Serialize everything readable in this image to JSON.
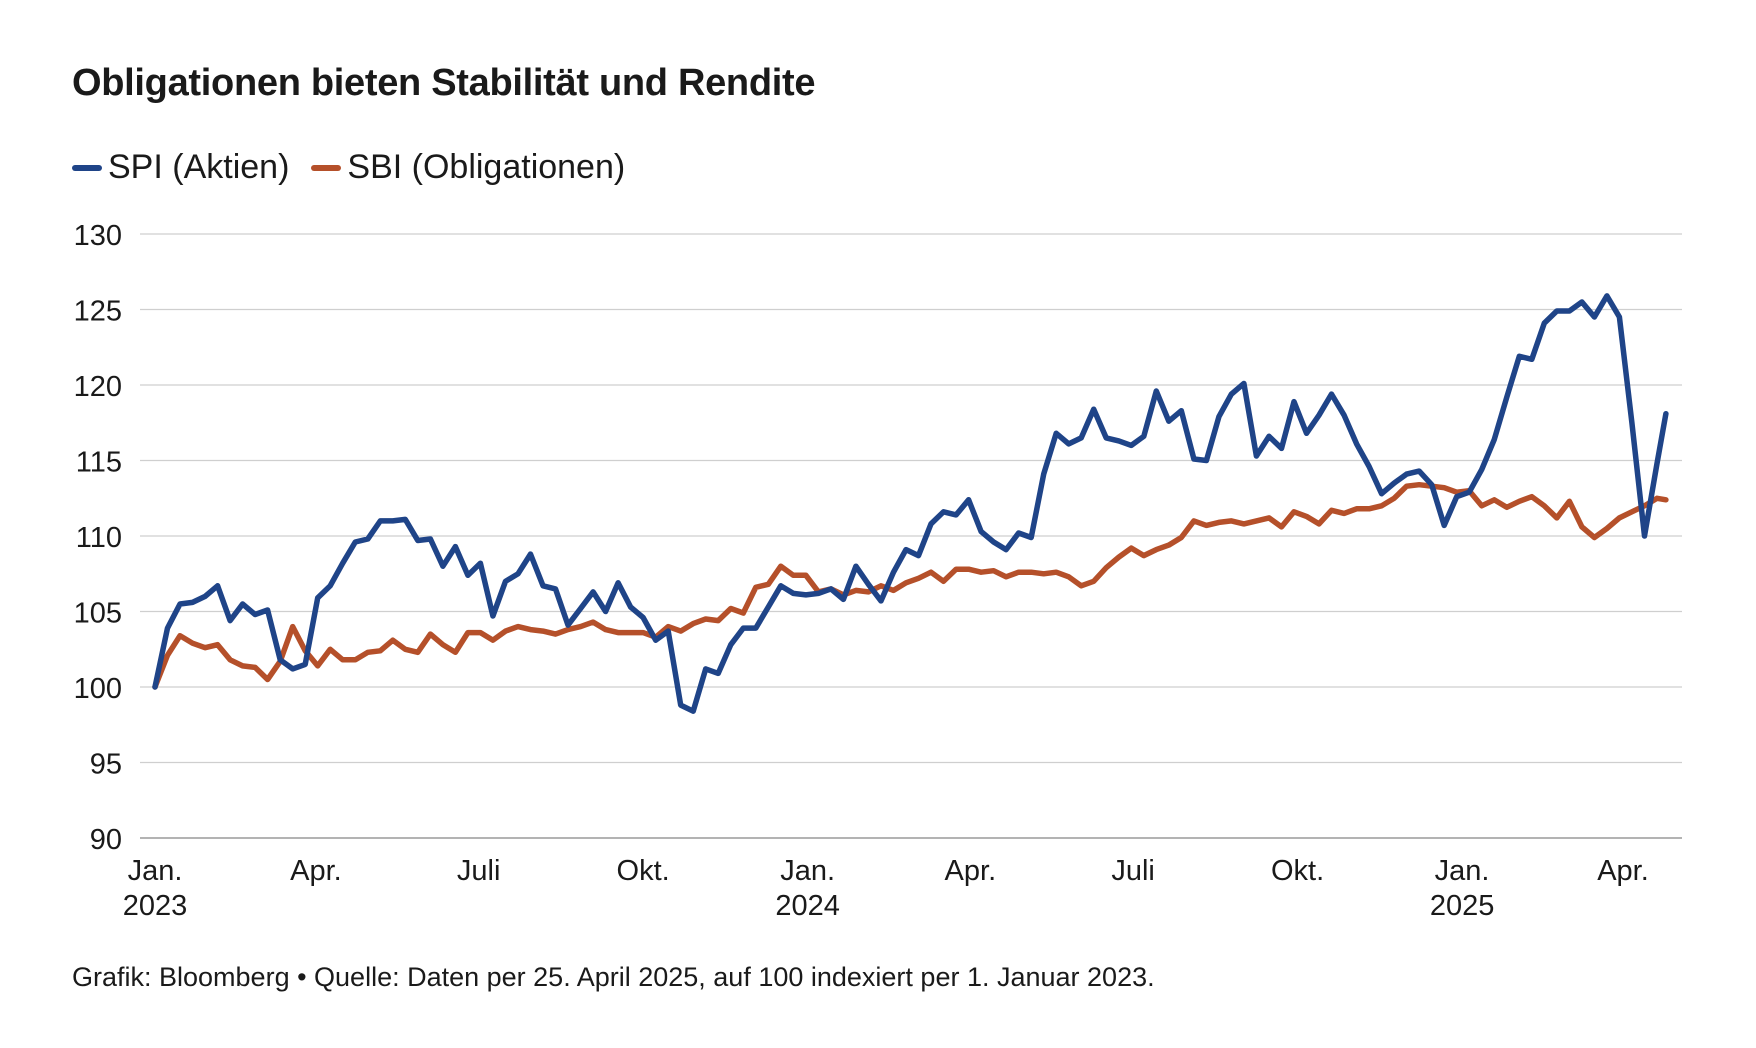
{
  "title": "Obligationen bieten Stabilität und Rendite",
  "legend": [
    {
      "label": "SPI (Aktien)",
      "color": "#1f4488"
    },
    {
      "label": "SBI (Obligationen)",
      "color": "#b5502a"
    }
  ],
  "source": "Grafik: Bloomberg • Quelle: Daten per 25. April 2025, auf 100 indexiert per 1. Januar 2023.",
  "chart_data": {
    "type": "line",
    "title": "Obligationen bieten Stabilität und Rendite",
    "ylim": [
      90,
      130
    ],
    "yticks": [
      90,
      95,
      100,
      105,
      110,
      115,
      120,
      125,
      130
    ],
    "grid": true,
    "legend_position": "top-left",
    "xlim": [
      "2023-01-01",
      "2025-05-01"
    ],
    "xticks": [
      {
        "date": "2023-01-01",
        "label": "Jan.",
        "year": "2023"
      },
      {
        "date": "2023-04-01",
        "label": "Apr.",
        "year": ""
      },
      {
        "date": "2023-07-01",
        "label": "Juli",
        "year": ""
      },
      {
        "date": "2023-10-01",
        "label": "Okt.",
        "year": ""
      },
      {
        "date": "2024-01-01",
        "label": "Jan.",
        "year": "2024"
      },
      {
        "date": "2024-04-01",
        "label": "Apr.",
        "year": ""
      },
      {
        "date": "2024-07-01",
        "label": "Juli",
        "year": ""
      },
      {
        "date": "2024-10-01",
        "label": "Okt.",
        "year": ""
      },
      {
        "date": "2025-01-01",
        "label": "Jan.",
        "year": "2025"
      },
      {
        "date": "2025-04-01",
        "label": "Apr.",
        "year": ""
      }
    ],
    "series": [
      {
        "name": "SPI (Aktien)",
        "color": "#1f4488",
        "points": [
          [
            "2023-01-01",
            100
          ],
          [
            "2023-01-08",
            103.9
          ],
          [
            "2023-01-15",
            105.5
          ],
          [
            "2023-01-22",
            105.6
          ],
          [
            "2023-01-29",
            106
          ],
          [
            "2023-02-05",
            106.7
          ],
          [
            "2023-02-12",
            104.4
          ],
          [
            "2023-02-19",
            105.5
          ],
          [
            "2023-02-26",
            104.8
          ],
          [
            "2023-03-05",
            105.1
          ],
          [
            "2023-03-12",
            101.8
          ],
          [
            "2023-03-19",
            101.2
          ],
          [
            "2023-03-26",
            101.5
          ],
          [
            "2023-04-02",
            105.9
          ],
          [
            "2023-04-09",
            106.7
          ],
          [
            "2023-04-16",
            108.2
          ],
          [
            "2023-04-23",
            109.6
          ],
          [
            "2023-04-30",
            109.8
          ],
          [
            "2023-05-07",
            111
          ],
          [
            "2023-05-14",
            111
          ],
          [
            "2023-05-21",
            111.1
          ],
          [
            "2023-05-28",
            109.7
          ],
          [
            "2023-06-04",
            109.8
          ],
          [
            "2023-06-11",
            108
          ],
          [
            "2023-06-18",
            109.3
          ],
          [
            "2023-06-25",
            107.4
          ],
          [
            "2023-07-02",
            108.2
          ],
          [
            "2023-07-09",
            104.7
          ],
          [
            "2023-07-16",
            107
          ],
          [
            "2023-07-23",
            107.5
          ],
          [
            "2023-07-30",
            108.8
          ],
          [
            "2023-08-06",
            106.7
          ],
          [
            "2023-08-13",
            106.5
          ],
          [
            "2023-08-20",
            104.1
          ],
          [
            "2023-08-27",
            105.2
          ],
          [
            "2023-09-03",
            106.3
          ],
          [
            "2023-09-10",
            105
          ],
          [
            "2023-09-17",
            106.9
          ],
          [
            "2023-09-24",
            105.3
          ],
          [
            "2023-10-01",
            104.6
          ],
          [
            "2023-10-08",
            103.1
          ],
          [
            "2023-10-15",
            103.7
          ],
          [
            "2023-10-22",
            98.8
          ],
          [
            "2023-10-29",
            98.4
          ],
          [
            "2023-11-05",
            101.2
          ],
          [
            "2023-11-12",
            100.9
          ],
          [
            "2023-11-19",
            102.8
          ],
          [
            "2023-11-26",
            103.9
          ],
          [
            "2023-12-03",
            103.9
          ],
          [
            "2023-12-10",
            105.3
          ],
          [
            "2023-12-17",
            106.7
          ],
          [
            "2023-12-24",
            106.2
          ],
          [
            "2023-12-31",
            106.1
          ],
          [
            "2024-01-07",
            106.2
          ],
          [
            "2024-01-14",
            106.5
          ],
          [
            "2024-01-21",
            105.8
          ],
          [
            "2024-01-28",
            108
          ],
          [
            "2024-02-04",
            106.8
          ],
          [
            "2024-02-11",
            105.7
          ],
          [
            "2024-02-18",
            107.6
          ],
          [
            "2024-02-25",
            109.1
          ],
          [
            "2024-03-03",
            108.7
          ],
          [
            "2024-03-10",
            110.8
          ],
          [
            "2024-03-17",
            111.6
          ],
          [
            "2024-03-24",
            111.4
          ],
          [
            "2024-03-31",
            112.4
          ],
          [
            "2024-04-07",
            110.3
          ],
          [
            "2024-04-14",
            109.6
          ],
          [
            "2024-04-21",
            109.1
          ],
          [
            "2024-04-28",
            110.2
          ],
          [
            "2024-05-05",
            109.9
          ],
          [
            "2024-05-12",
            114.1
          ],
          [
            "2024-05-19",
            116.8
          ],
          [
            "2024-05-26",
            116.1
          ],
          [
            "2024-06-02",
            116.5
          ],
          [
            "2024-06-09",
            118.4
          ],
          [
            "2024-06-16",
            116.5
          ],
          [
            "2024-06-23",
            116.3
          ],
          [
            "2024-06-30",
            116
          ],
          [
            "2024-07-07",
            116.6
          ],
          [
            "2024-07-14",
            119.6
          ],
          [
            "2024-07-21",
            117.6
          ],
          [
            "2024-07-28",
            118.3
          ],
          [
            "2024-08-04",
            115.1
          ],
          [
            "2024-08-11",
            115
          ],
          [
            "2024-08-18",
            117.9
          ],
          [
            "2024-08-25",
            119.4
          ],
          [
            "2024-09-01",
            120.1
          ],
          [
            "2024-09-08",
            115.3
          ],
          [
            "2024-09-15",
            116.6
          ],
          [
            "2024-09-22",
            115.8
          ],
          [
            "2024-09-29",
            118.9
          ],
          [
            "2024-10-06",
            116.8
          ],
          [
            "2024-10-13",
            118
          ],
          [
            "2024-10-20",
            119.4
          ],
          [
            "2024-10-27",
            118
          ],
          [
            "2024-11-03",
            116.1
          ],
          [
            "2024-11-10",
            114.6
          ],
          [
            "2024-11-17",
            112.8
          ],
          [
            "2024-11-24",
            113.5
          ],
          [
            "2024-12-01",
            114.1
          ],
          [
            "2024-12-08",
            114.3
          ],
          [
            "2024-12-15",
            113.4
          ],
          [
            "2024-12-22",
            110.7
          ],
          [
            "2024-12-29",
            112.6
          ],
          [
            "2025-01-05",
            112.9
          ],
          [
            "2025-01-12",
            114.4
          ],
          [
            "2025-01-19",
            116.4
          ],
          [
            "2025-01-26",
            119.2
          ],
          [
            "2025-02-02",
            121.9
          ],
          [
            "2025-02-09",
            121.7
          ],
          [
            "2025-02-16",
            124.1
          ],
          [
            "2025-02-23",
            124.9
          ],
          [
            "2025-03-02",
            124.9
          ],
          [
            "2025-03-09",
            125.5
          ],
          [
            "2025-03-16",
            124.5
          ],
          [
            "2025-03-23",
            125.9
          ],
          [
            "2025-03-30",
            124.5
          ],
          [
            "2025-04-06",
            117.5
          ],
          [
            "2025-04-13",
            110
          ],
          [
            "2025-04-20",
            114.8
          ],
          [
            "2025-04-25",
            118.1
          ]
        ]
      },
      {
        "name": "SBI (Obligationen)",
        "color": "#b5502a",
        "points": [
          [
            "2023-01-01",
            100
          ],
          [
            "2023-01-08",
            102.1
          ],
          [
            "2023-01-15",
            103.4
          ],
          [
            "2023-01-22",
            102.9
          ],
          [
            "2023-01-29",
            102.6
          ],
          [
            "2023-02-05",
            102.8
          ],
          [
            "2023-02-12",
            101.8
          ],
          [
            "2023-02-19",
            101.4
          ],
          [
            "2023-02-26",
            101.3
          ],
          [
            "2023-03-05",
            100.5
          ],
          [
            "2023-03-12",
            101.7
          ],
          [
            "2023-03-19",
            104
          ],
          [
            "2023-03-26",
            102.4
          ],
          [
            "2023-04-02",
            101.4
          ],
          [
            "2023-04-09",
            102.5
          ],
          [
            "2023-04-16",
            101.8
          ],
          [
            "2023-04-23",
            101.8
          ],
          [
            "2023-04-30",
            102.3
          ],
          [
            "2023-05-07",
            102.4
          ],
          [
            "2023-05-14",
            103.1
          ],
          [
            "2023-05-21",
            102.5
          ],
          [
            "2023-05-28",
            102.3
          ],
          [
            "2023-06-04",
            103.5
          ],
          [
            "2023-06-11",
            102.8
          ],
          [
            "2023-06-18",
            102.3
          ],
          [
            "2023-06-25",
            103.6
          ],
          [
            "2023-07-02",
            103.6
          ],
          [
            "2023-07-09",
            103.1
          ],
          [
            "2023-07-16",
            103.7
          ],
          [
            "2023-07-23",
            104
          ],
          [
            "2023-07-30",
            103.8
          ],
          [
            "2023-08-06",
            103.7
          ],
          [
            "2023-08-13",
            103.5
          ],
          [
            "2023-08-20",
            103.8
          ],
          [
            "2023-08-27",
            104
          ],
          [
            "2023-09-03",
            104.3
          ],
          [
            "2023-09-10",
            103.8
          ],
          [
            "2023-09-17",
            103.6
          ],
          [
            "2023-09-24",
            103.6
          ],
          [
            "2023-10-01",
            103.6
          ],
          [
            "2023-10-08",
            103.3
          ],
          [
            "2023-10-15",
            104
          ],
          [
            "2023-10-22",
            103.7
          ],
          [
            "2023-10-29",
            104.2
          ],
          [
            "2023-11-05",
            104.5
          ],
          [
            "2023-11-12",
            104.4
          ],
          [
            "2023-11-19",
            105.2
          ],
          [
            "2023-11-26",
            104.9
          ],
          [
            "2023-12-03",
            106.6
          ],
          [
            "2023-12-10",
            106.8
          ],
          [
            "2023-12-17",
            108
          ],
          [
            "2023-12-24",
            107.4
          ],
          [
            "2023-12-31",
            107.4
          ],
          [
            "2024-01-07",
            106.3
          ],
          [
            "2024-01-14",
            106.5
          ],
          [
            "2024-01-21",
            106.1
          ],
          [
            "2024-01-28",
            106.4
          ],
          [
            "2024-02-04",
            106.3
          ],
          [
            "2024-02-11",
            106.7
          ],
          [
            "2024-02-18",
            106.4
          ],
          [
            "2024-02-25",
            106.9
          ],
          [
            "2024-03-03",
            107.2
          ],
          [
            "2024-03-10",
            107.6
          ],
          [
            "2024-03-17",
            107
          ],
          [
            "2024-03-24",
            107.8
          ],
          [
            "2024-03-31",
            107.8
          ],
          [
            "2024-04-07",
            107.6
          ],
          [
            "2024-04-14",
            107.7
          ],
          [
            "2024-04-21",
            107.3
          ],
          [
            "2024-04-28",
            107.6
          ],
          [
            "2024-05-05",
            107.6
          ],
          [
            "2024-05-12",
            107.5
          ],
          [
            "2024-05-19",
            107.6
          ],
          [
            "2024-05-26",
            107.3
          ],
          [
            "2024-06-02",
            106.7
          ],
          [
            "2024-06-09",
            107
          ],
          [
            "2024-06-16",
            107.9
          ],
          [
            "2024-06-23",
            108.6
          ],
          [
            "2024-06-30",
            109.2
          ],
          [
            "2024-07-07",
            108.7
          ],
          [
            "2024-07-14",
            109.1
          ],
          [
            "2024-07-21",
            109.4
          ],
          [
            "2024-07-28",
            109.9
          ],
          [
            "2024-08-04",
            111
          ],
          [
            "2024-08-11",
            110.7
          ],
          [
            "2024-08-18",
            110.9
          ],
          [
            "2024-08-25",
            111
          ],
          [
            "2024-09-01",
            110.8
          ],
          [
            "2024-09-08",
            111
          ],
          [
            "2024-09-15",
            111.2
          ],
          [
            "2024-09-22",
            110.6
          ],
          [
            "2024-09-29",
            111.6
          ],
          [
            "2024-10-06",
            111.3
          ],
          [
            "2024-10-13",
            110.8
          ],
          [
            "2024-10-20",
            111.7
          ],
          [
            "2024-10-27",
            111.5
          ],
          [
            "2024-11-03",
            111.8
          ],
          [
            "2024-11-10",
            111.8
          ],
          [
            "2024-11-17",
            112
          ],
          [
            "2024-11-24",
            112.5
          ],
          [
            "2024-12-01",
            113.3
          ],
          [
            "2024-12-08",
            113.4
          ],
          [
            "2024-12-15",
            113.3
          ],
          [
            "2024-12-22",
            113.2
          ],
          [
            "2024-12-29",
            112.9
          ],
          [
            "2025-01-05",
            113
          ],
          [
            "2025-01-12",
            112
          ],
          [
            "2025-01-19",
            112.4
          ],
          [
            "2025-01-26",
            111.9
          ],
          [
            "2025-02-02",
            112.3
          ],
          [
            "2025-02-09",
            112.6
          ],
          [
            "2025-02-16",
            112
          ],
          [
            "2025-02-23",
            111.2
          ],
          [
            "2025-03-02",
            112.3
          ],
          [
            "2025-03-09",
            110.6
          ],
          [
            "2025-03-16",
            109.9
          ],
          [
            "2025-03-23",
            110.5
          ],
          [
            "2025-03-30",
            111.2
          ],
          [
            "2025-04-06",
            111.6
          ],
          [
            "2025-04-13",
            112
          ],
          [
            "2025-04-20",
            112.5
          ],
          [
            "2025-04-25",
            112.4
          ]
        ]
      }
    ]
  }
}
